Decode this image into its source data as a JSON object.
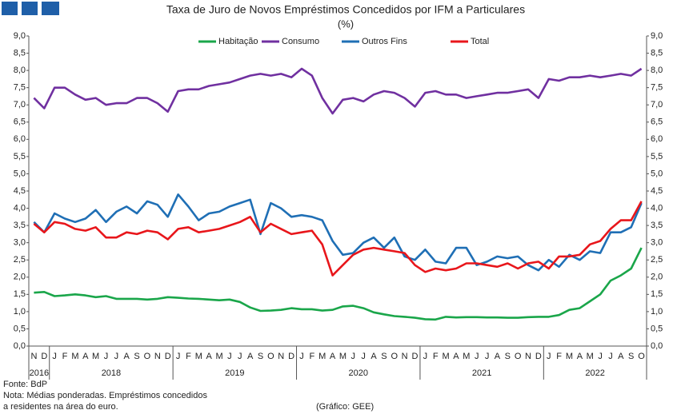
{
  "chart_data": {
    "type": "line",
    "title": "Taxa de Juro de Novos Empréstimos Concedidos por IFM a Particulares",
    "subtitle": "(%)",
    "categories": [
      "N",
      "D",
      "J",
      "F",
      "M",
      "A",
      "M",
      "J",
      "J",
      "A",
      "S",
      "O",
      "N",
      "D",
      "J",
      "F",
      "M",
      "A",
      "M",
      "J",
      "J",
      "A",
      "S",
      "O",
      "N",
      "D",
      "J",
      "F",
      "M",
      "A",
      "M",
      "J",
      "J",
      "A",
      "S",
      "O",
      "N",
      "D",
      "J",
      "F",
      "M",
      "A",
      "M",
      "J",
      "J",
      "A",
      "S",
      "O",
      "N",
      "D",
      "J",
      "F",
      "M",
      "A",
      "M",
      "J",
      "J",
      "A",
      "S",
      "O"
    ],
    "year_labels": [
      "2016",
      "2018",
      "2019",
      "2020",
      "2021",
      "2022"
    ],
    "series": [
      {
        "name": "Habitação",
        "color": "#1aa64a",
        "values": [
          1.55,
          1.57,
          1.45,
          1.47,
          1.5,
          1.47,
          1.42,
          1.45,
          1.37,
          1.37,
          1.37,
          1.35,
          1.37,
          1.42,
          1.4,
          1.38,
          1.37,
          1.35,
          1.33,
          1.35,
          1.28,
          1.12,
          1.02,
          1.03,
          1.05,
          1.1,
          1.07,
          1.07,
          1.03,
          1.05,
          1.15,
          1.17,
          1.1,
          0.98,
          0.92,
          0.87,
          0.85,
          0.82,
          0.78,
          0.77,
          0.85,
          0.83,
          0.84,
          0.84,
          0.83,
          0.83,
          0.82,
          0.82,
          0.84,
          0.85,
          0.85,
          0.9,
          1.05,
          1.1,
          1.3,
          1.5,
          1.9,
          2.05,
          2.25,
          2.85
        ]
      },
      {
        "name": "Consumo",
        "color": "#7030a0",
        "values": [
          7.2,
          6.9,
          7.5,
          7.5,
          7.3,
          7.15,
          7.2,
          7.0,
          7.05,
          7.05,
          7.2,
          7.2,
          7.05,
          6.8,
          7.4,
          7.45,
          7.45,
          7.55,
          7.6,
          7.65,
          7.75,
          7.85,
          7.9,
          7.85,
          7.9,
          7.8,
          8.05,
          7.85,
          7.2,
          6.75,
          7.15,
          7.2,
          7.1,
          7.3,
          7.4,
          7.35,
          7.2,
          6.95,
          7.35,
          7.4,
          7.3,
          7.3,
          7.2,
          7.25,
          7.3,
          7.35,
          7.35,
          7.4,
          7.45,
          7.2,
          7.75,
          7.7,
          7.8,
          7.8,
          7.85,
          7.8,
          7.85,
          7.9,
          7.85,
          8.05
        ]
      },
      {
        "name": "Outros Fins",
        "color": "#1f6fb5",
        "values": [
          3.6,
          3.3,
          3.85,
          3.7,
          3.6,
          3.7,
          3.95,
          3.6,
          3.9,
          4.05,
          3.85,
          4.2,
          4.1,
          3.75,
          4.4,
          4.05,
          3.65,
          3.85,
          3.9,
          4.05,
          4.15,
          4.25,
          3.25,
          4.15,
          4.0,
          3.75,
          3.8,
          3.75,
          3.65,
          3.05,
          2.65,
          2.7,
          3.0,
          3.15,
          2.85,
          3.15,
          2.6,
          2.5,
          2.8,
          2.45,
          2.4,
          2.85,
          2.85,
          2.35,
          2.45,
          2.6,
          2.55,
          2.6,
          2.35,
          2.2,
          2.5,
          2.3,
          2.65,
          2.5,
          2.75,
          2.7,
          3.3,
          3.3,
          3.45,
          4.15
        ]
      },
      {
        "name": "Total",
        "color": "#e8161b",
        "values": [
          3.55,
          3.3,
          3.6,
          3.55,
          3.4,
          3.35,
          3.45,
          3.15,
          3.15,
          3.3,
          3.25,
          3.35,
          3.3,
          3.1,
          3.4,
          3.45,
          3.3,
          3.35,
          3.4,
          3.5,
          3.6,
          3.75,
          3.3,
          3.55,
          3.4,
          3.25,
          3.3,
          3.35,
          2.95,
          2.05,
          2.35,
          2.65,
          2.8,
          2.85,
          2.8,
          2.75,
          2.7,
          2.35,
          2.15,
          2.25,
          2.2,
          2.25,
          2.4,
          2.4,
          2.35,
          2.3,
          2.4,
          2.25,
          2.4,
          2.45,
          2.25,
          2.6,
          2.6,
          2.65,
          2.95,
          3.05,
          3.4,
          3.65,
          3.65,
          4.2
        ]
      }
    ],
    "ylim": [
      0,
      9
    ],
    "yticks": [
      {
        "value": 0,
        "label": "0,0"
      },
      {
        "value": 0.5,
        "label": "0,5"
      },
      {
        "value": 1,
        "label": "1,0"
      },
      {
        "value": 1.5,
        "label": "1,5"
      },
      {
        "value": 2,
        "label": "2,0"
      },
      {
        "value": 2.5,
        "label": "2,5"
      },
      {
        "value": 3,
        "label": "3,0"
      },
      {
        "value": 3.5,
        "label": "3,5"
      },
      {
        "value": 4,
        "label": "4,0"
      },
      {
        "value": 4.5,
        "label": "4,5"
      },
      {
        "value": 5,
        "label": "5,0"
      },
      {
        "value": 5.5,
        "label": "5,5"
      },
      {
        "value": 6,
        "label": "6,0"
      },
      {
        "value": 6.5,
        "label": "6,5"
      },
      {
        "value": 7,
        "label": "7,0"
      },
      {
        "value": 7.5,
        "label": "7,5"
      },
      {
        "value": 8,
        "label": "8,0"
      },
      {
        "value": 8.5,
        "label": "8,5"
      },
      {
        "value": 9,
        "label": "9,0"
      }
    ],
    "legend": "top",
    "notes": [
      "Fonte: BdP",
      "Nota: Médias ponderadas. Empréstimos concedidos",
      "a residentes na área do euro.",
      "(Gráfico: GEE)"
    ]
  }
}
